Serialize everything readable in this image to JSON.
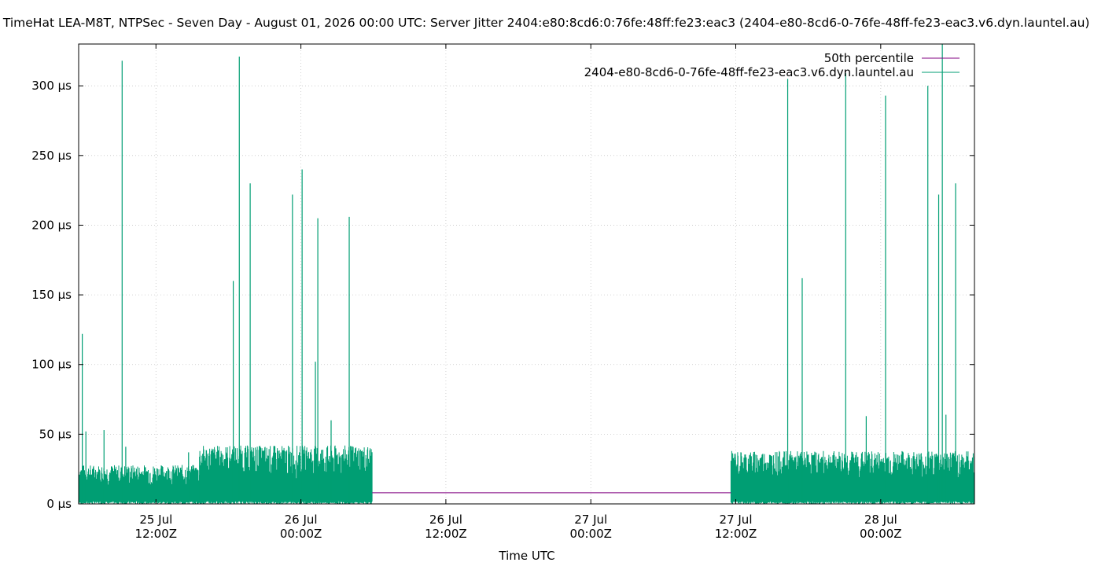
{
  "chart_data": {
    "type": "line",
    "title": ", TimeHat LEA-M8T, NTPSec - Seven Day - August 01, 2026 00:00 UTC: Server Jitter 2404:e80:8cd6:0:76fe:48ff:fe23:eac3 (2404-e80-8cd6-0-76fe-48ff-fe23-eac3.v6.dyn.launtel.au)",
    "xlabel": "Time UTC",
    "ylabel": "",
    "x_range_hours": [
      0,
      74.16
    ],
    "ylim": [
      0,
      330
    ],
    "y_unit": "µs",
    "yticks": [
      {
        "value": 0,
        "label": "0 µs"
      },
      {
        "value": 50,
        "label": "50 µs"
      },
      {
        "value": 100,
        "label": "100 µs"
      },
      {
        "value": 150,
        "label": "150 µs"
      },
      {
        "value": 200,
        "label": "200 µs"
      },
      {
        "value": 250,
        "label": "250 µs"
      },
      {
        "value": 300,
        "label": "300 µs"
      }
    ],
    "xticks": [
      {
        "hour": 6.4,
        "line1": "25 Jul",
        "line2": "12:00Z"
      },
      {
        "hour": 18.4,
        "line1": "26 Jul",
        "line2": "00:00Z"
      },
      {
        "hour": 30.4,
        "line1": "26 Jul",
        "line2": "12:00Z"
      },
      {
        "hour": 42.4,
        "line1": "27 Jul",
        "line2": "00:00Z"
      },
      {
        "hour": 54.4,
        "line1": "27 Jul",
        "line2": "12:00Z"
      },
      {
        "hour": 66.4,
        "line1": "28 Jul",
        "line2": "00:00Z"
      }
    ],
    "grid": true,
    "legend_position": "top-right",
    "series": [
      {
        "name": "50th percentile",
        "color": "#800080",
        "value": 8
      },
      {
        "name": "2404-e80-8cd6-0-76fe-48ff-fe23-eac3.v6.dyn.launtel.au",
        "color": "#009e73",
        "segments": [
          {
            "start": 0,
            "end": 10.0,
            "base": 2,
            "typical_high": 28
          },
          {
            "start": 10.0,
            "end": 24.3,
            "base": 2,
            "typical_high": 42
          },
          {
            "start": 54.0,
            "end": 74.16,
            "base": 2,
            "typical_high": 38
          }
        ],
        "spikes": [
          {
            "hour": 0.3,
            "value": 122
          },
          {
            "hour": 0.6,
            "value": 52
          },
          {
            "hour": 2.1,
            "value": 53
          },
          {
            "hour": 3.6,
            "value": 318
          },
          {
            "hour": 3.9,
            "value": 41
          },
          {
            "hour": 9.1,
            "value": 37
          },
          {
            "hour": 12.8,
            "value": 160
          },
          {
            "hour": 13.3,
            "value": 321
          },
          {
            "hour": 14.2,
            "value": 230
          },
          {
            "hour": 17.7,
            "value": 222
          },
          {
            "hour": 18.5,
            "value": 240
          },
          {
            "hour": 19.6,
            "value": 102
          },
          {
            "hour": 19.8,
            "value": 205
          },
          {
            "hour": 20.9,
            "value": 60
          },
          {
            "hour": 22.4,
            "value": 206
          },
          {
            "hour": 58.7,
            "value": 305
          },
          {
            "hour": 59.9,
            "value": 162
          },
          {
            "hour": 63.5,
            "value": 309
          },
          {
            "hour": 65.2,
            "value": 63
          },
          {
            "hour": 66.8,
            "value": 293
          },
          {
            "hour": 70.3,
            "value": 300
          },
          {
            "hour": 71.2,
            "value": 222
          },
          {
            "hour": 71.5,
            "value": 330
          },
          {
            "hour": 71.8,
            "value": 64
          },
          {
            "hour": 72.6,
            "value": 230
          }
        ]
      }
    ]
  }
}
